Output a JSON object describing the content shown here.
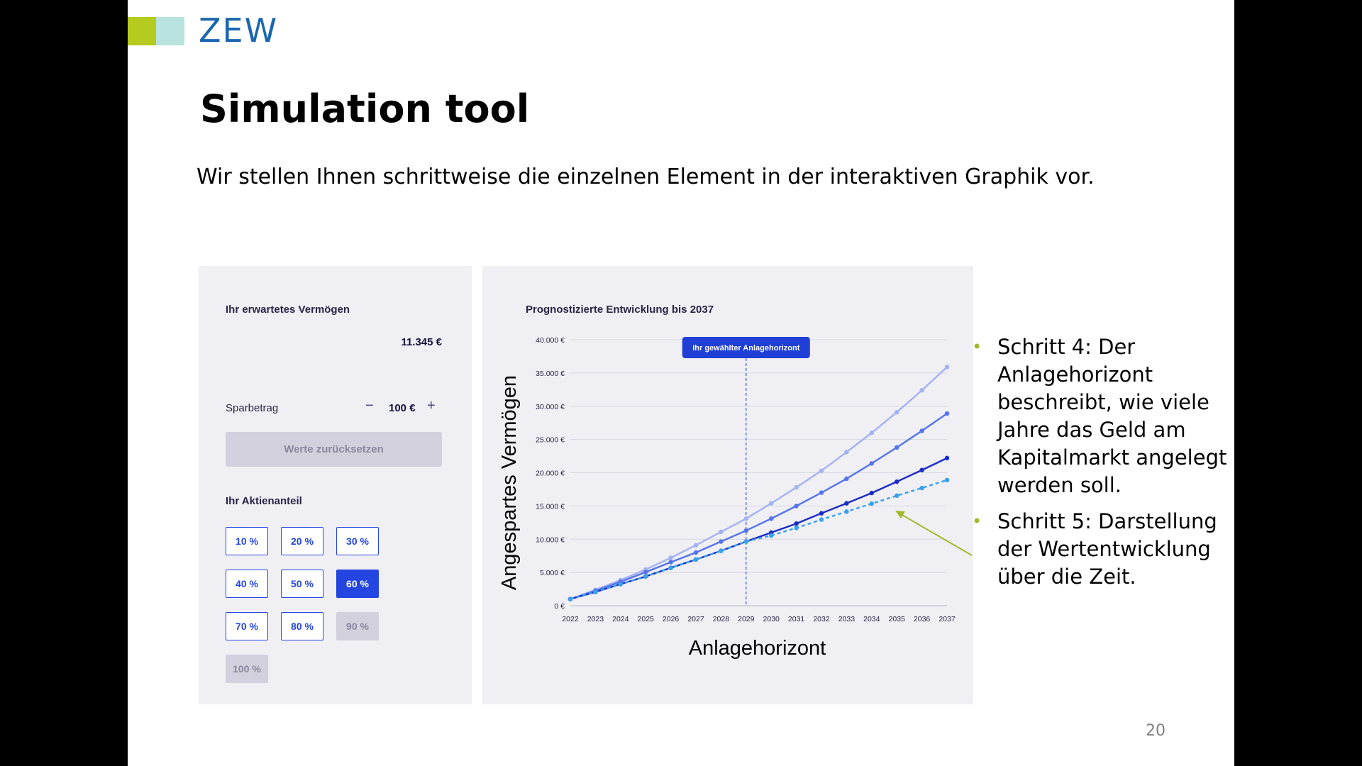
{
  "logo": {
    "text": "ZEW"
  },
  "slide": {
    "title": "Simulation tool",
    "subtitle": "Wir stellen Ihnen schrittweise die einzelnen Element in der interaktiven Graphik vor.",
    "page_number": "20"
  },
  "left_panel": {
    "heading": "Ihr erwartetes Vermögen",
    "value": "11.345 €",
    "sparbetrag_label": "Sparbetrag",
    "minus": "−",
    "amount": "100 €",
    "plus": "+",
    "reset_label": "Werte zurücksetzen",
    "aktien_heading": "Ihr Aktienanteil",
    "buttons": [
      "10 %",
      "20 %",
      "30 %",
      "40 %",
      "50 %",
      "60 %",
      "70 %",
      "80 %",
      "90 %",
      "100 %"
    ],
    "selected": "60 %",
    "disabled": [
      "90 %",
      "100 %"
    ]
  },
  "chart_data": {
    "type": "line",
    "title": "Prognostizierte Entwicklung bis 2037",
    "xlabel": "Anlagehorizont",
    "ylabel": "Angespartes Vermögen",
    "x": [
      2022,
      2023,
      2024,
      2025,
      2026,
      2027,
      2028,
      2029,
      2030,
      2031,
      2032,
      2033,
      2034,
      2035,
      2036,
      2037
    ],
    "y_ticks": [
      "0 €",
      "5.000 €",
      "10.000 €",
      "15.000 €",
      "20.000 €",
      "25.000 €",
      "30.000 €",
      "35.000 €",
      "40.000 €"
    ],
    "ylim": [
      0,
      40000
    ],
    "grid": true,
    "horizon_year": 2029,
    "horizon_label": "Ihr gewählter Anlagehorizont",
    "series": [
      {
        "values": [
          1000,
          2380,
          3850,
          5450,
          7200,
          9100,
          11100,
          13100,
          15400,
          17800,
          20300,
          23100,
          26000,
          29100,
          32400,
          35900
        ],
        "color": "#a4b2f2",
        "dashed": false
      },
      {
        "values": [
          1000,
          2250,
          3600,
          5050,
          6550,
          8000,
          9650,
          11300,
          13100,
          15000,
          17000,
          19100,
          21400,
          23800,
          26300,
          28900
        ],
        "color": "#5474ea",
        "dashed": false
      },
      {
        "values": [
          1000,
          2050,
          3250,
          4400,
          5700,
          6950,
          8250,
          9650,
          11000,
          12350,
          13900,
          15400,
          16950,
          18650,
          20400,
          22200
        ],
        "color": "#1a2cc2",
        "dashed": false
      },
      {
        "values": [
          1000,
          2050,
          3250,
          4400,
          5700,
          6950,
          8250,
          9650,
          10550,
          11700,
          12950,
          14150,
          15350,
          16550,
          17700,
          18900
        ],
        "color": "#3aa0ea",
        "dashed": true
      }
    ]
  },
  "bullets": [
    "Schritt 4: Der Anlagehorizont beschreibt, wie viele Jahre das Geld am Kapitalmarkt angelegt werden soll.",
    "Schritt 5: Darstellung der Wertentwicklung über die Zeit."
  ],
  "colors": {
    "accent": "#2545e0",
    "arrow": "#a3b92a",
    "logo_blue": "#1b66b1"
  }
}
